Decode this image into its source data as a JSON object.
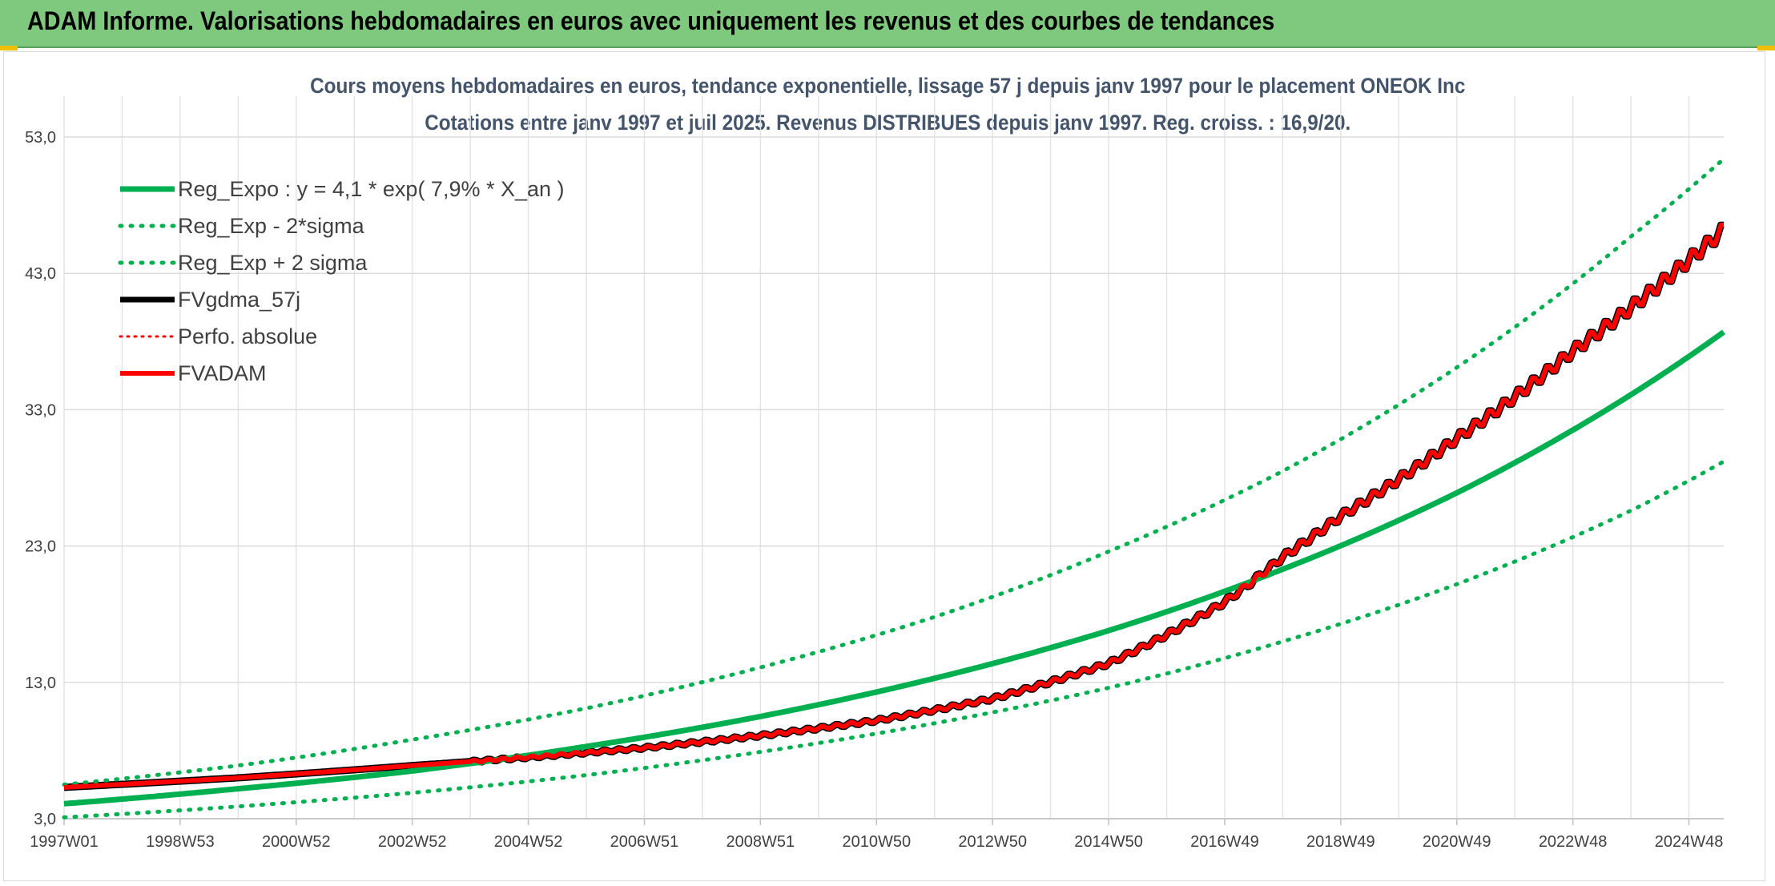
{
  "header": {
    "title": "ADAM Informe. Valorisations hebdomadaires en euros avec uniquement les revenus et des courbes de tendances"
  },
  "chart_data": {
    "type": "line",
    "title": "Cours moyens hebdomadaires en euros, tendance exponentielle, lissage 57 j depuis janv 1997 pour le placement ONEOK Inc",
    "subtitle": "Cotations entre janv 1997 et juil 2025. Revenus DISTRIBUES depuis janv 1997. Reg. croiss. : 16,9/20.",
    "xlabel": "",
    "ylabel": "",
    "ylim": [
      3,
      56
    ],
    "xlim": [
      1997.0,
      2025.6
    ],
    "y_ticks": [
      "3,0",
      "13,0",
      "23,0",
      "33,0",
      "43,0",
      "53,0"
    ],
    "y_tick_values": [
      3,
      13,
      23,
      33,
      43,
      53
    ],
    "x_tick_labels": [
      "1997W01",
      "1998W53",
      "2000W52",
      "2002W52",
      "2004W52",
      "2006W51",
      "2008W51",
      "2010W50",
      "2012W50",
      "2014W50",
      "2016W49",
      "2018W49",
      "2020W49",
      "2022W48",
      "2024W48"
    ],
    "x_tick_values": [
      1997.0,
      1999.0,
      2001.0,
      2003.0,
      2005.0,
      2007.0,
      2009.0,
      2011.0,
      2013.0,
      2015.0,
      2017.0,
      2019.0,
      2021.0,
      2023.0,
      2025.0
    ],
    "grid": true,
    "legend_position": "top-left",
    "series": [
      {
        "name": "Reg_Expo : y = 4,1 * exp( 7,9% *  X_an )",
        "color": "#00b050",
        "style": "solid",
        "width": 7,
        "x": [
          1997.0,
          2000.0,
          2003.0,
          2006.0,
          2009.0,
          2012.0,
          2015.0,
          2018.0,
          2021.0,
          2024.0,
          2025.6
        ],
        "values": [
          4.1,
          5.2,
          6.5,
          8.3,
          10.5,
          13.3,
          16.8,
          21.3,
          26.9,
          34.1,
          38.7
        ]
      },
      {
        "name": "Reg_Exp - 2*sigma",
        "color": "#00b050",
        "style": "dotted",
        "width": 5,
        "x": [
          1997.0,
          2000.0,
          2003.0,
          2006.0,
          2009.0,
          2012.0,
          2015.0,
          2018.0,
          2021.0,
          2024.0,
          2025.6
        ],
        "values": [
          3.1,
          3.9,
          4.9,
          6.2,
          7.9,
          10.0,
          12.6,
          16.0,
          20.2,
          25.6,
          29.2
        ]
      },
      {
        "name": "Reg_Exp + 2 sigma",
        "color": "#00b050",
        "style": "dotted",
        "width": 5,
        "x": [
          1997.0,
          2000.0,
          2003.0,
          2006.0,
          2009.0,
          2012.0,
          2015.0,
          2018.0,
          2021.0,
          2024.0,
          2025.6
        ],
        "values": [
          5.5,
          6.9,
          8.8,
          11.1,
          14.1,
          17.8,
          22.6,
          28.5,
          36.1,
          45.7,
          51.4
        ]
      },
      {
        "name": "FVgdma_57j",
        "color": "#000000",
        "style": "solid",
        "width": 9,
        "x": [
          1997.0,
          2000.0,
          2003.0,
          2005.0,
          2007.0,
          2009.0,
          2011.0,
          2013.0,
          2015.0,
          2017.0,
          2018.0,
          2019.0,
          2021.0,
          2023.0,
          2025.6
        ],
        "values": [
          5.3,
          6.0,
          6.9,
          7.5,
          8.2,
          9.1,
          10.2,
          11.8,
          14.4,
          18.9,
          22.2,
          25.2,
          30.9,
          37.3,
          46.2
        ]
      },
      {
        "name": "Perfo. absolue",
        "color": "#ff0000",
        "style": "dotted",
        "width": 3,
        "x": [],
        "values": []
      },
      {
        "name": "FVADAM",
        "color": "#ff0000",
        "style": "solid",
        "width": 6,
        "x": [
          1997.0,
          2000.0,
          2003.0,
          2005.0,
          2007.0,
          2009.0,
          2011.0,
          2013.0,
          2015.0,
          2017.0,
          2018.0,
          2019.0,
          2021.0,
          2023.0,
          2025.6
        ],
        "values": [
          5.3,
          6.0,
          6.9,
          7.5,
          8.2,
          9.1,
          10.2,
          11.8,
          14.4,
          18.9,
          22.2,
          25.2,
          30.9,
          37.3,
          46.2
        ]
      }
    ]
  }
}
